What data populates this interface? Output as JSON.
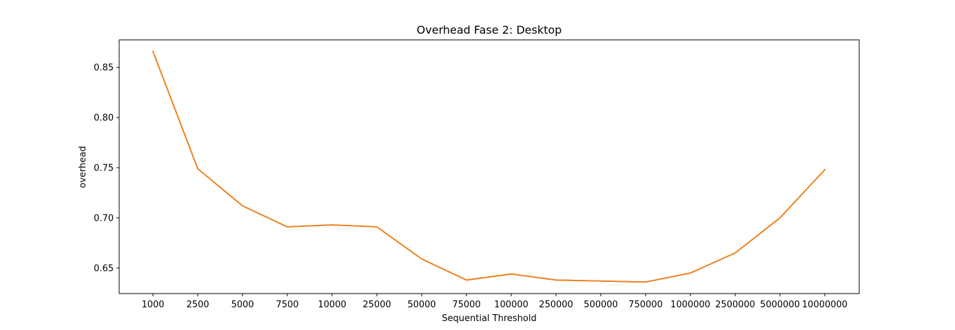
{
  "chart_data": {
    "type": "line",
    "title": "Overhead Fase 2: Desktop",
    "xlabel": "Sequential Threshold",
    "ylabel": "overhead",
    "categories": [
      "1000",
      "2500",
      "5000",
      "7500",
      "10000",
      "25000",
      "50000",
      "75000",
      "100000",
      "250000",
      "500000",
      "750000",
      "1000000",
      "2500000",
      "5000000",
      "10000000"
    ],
    "series": [
      {
        "color": "#1f77b4",
        "values": [
          0.866,
          0.749,
          0.712,
          0.691,
          0.693,
          0.691,
          0.659,
          0.638,
          0.644,
          0.638,
          0.637,
          0.636,
          0.645,
          0.665,
          0.7,
          0.748
        ]
      },
      {
        "color": "#ff7f0e",
        "values": [
          0.866,
          0.749,
          0.712,
          0.691,
          0.693,
          0.691,
          0.659,
          0.638,
          0.644,
          0.638,
          0.637,
          0.636,
          0.645,
          0.665,
          0.7,
          0.748
        ]
      }
    ],
    "yticks": [
      0.65,
      0.7,
      0.75,
      0.8,
      0.85
    ],
    "ytick_labels": [
      "0.65",
      "0.70",
      "0.75",
      "0.80",
      "0.85"
    ],
    "ylim": [
      0.6245,
      0.8775
    ],
    "grid": false,
    "legend": "none"
  }
}
